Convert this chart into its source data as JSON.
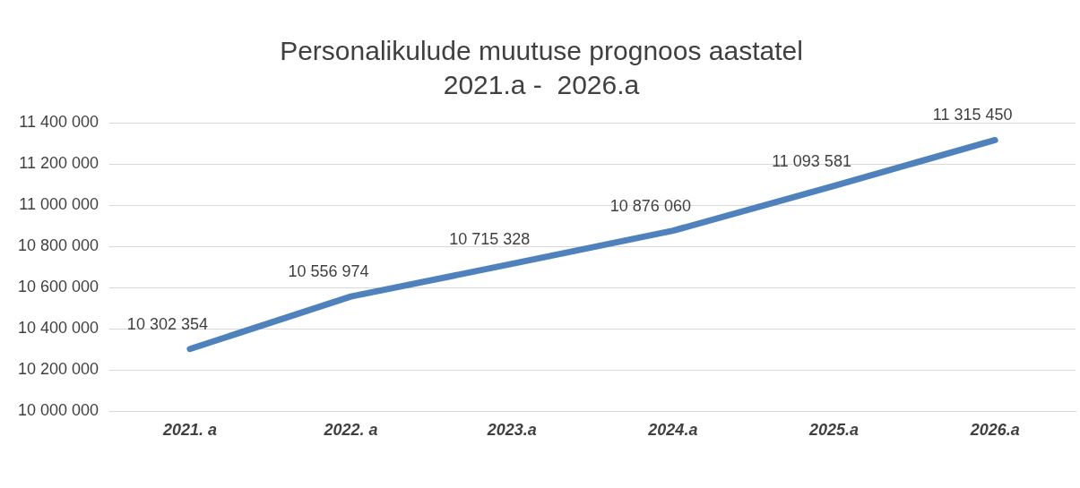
{
  "chart_data": {
    "type": "line",
    "title": "Personalikulude muutuse prognoos aastatel\n2021.a -  2026.a",
    "categories": [
      "2021. a",
      "2022. a",
      "2023.a",
      "2024.a",
      "2025.a",
      "2026.a"
    ],
    "series": [
      {
        "color": "#4f81bd",
        "values": [
          10302354,
          10556974,
          10715328,
          10876060,
          11093581,
          11315450
        ]
      }
    ],
    "ylim": [
      10000000,
      11400000
    ],
    "yticks": [
      10000000,
      10200000,
      10400000,
      10600000,
      10800000,
      11000000,
      11200000,
      11400000
    ],
    "grid": "y",
    "legend": false,
    "marker": "none",
    "line_style": "solid",
    "data_labels": true
  }
}
